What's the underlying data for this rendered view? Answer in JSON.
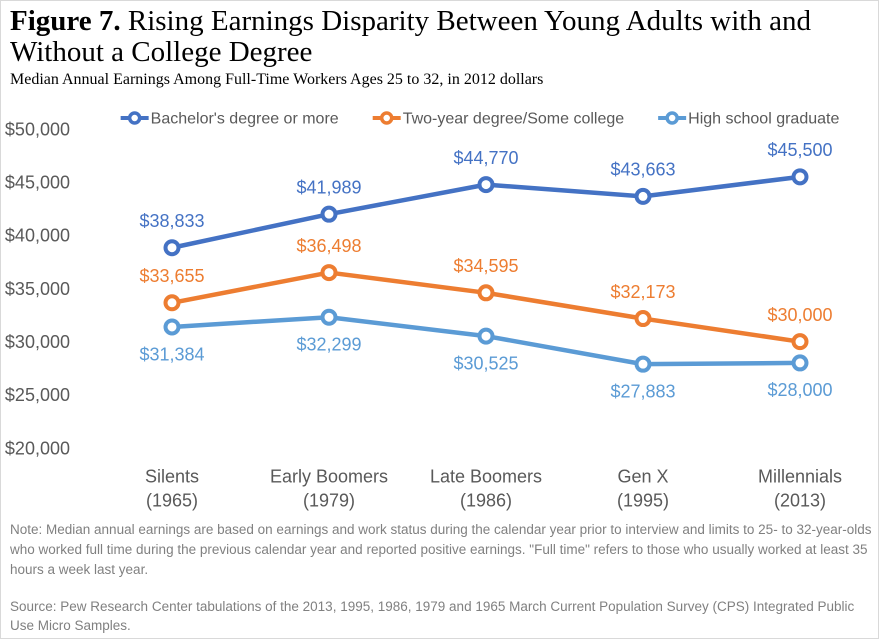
{
  "chart_data": {
    "type": "line",
    "figure_label": "Figure 7.",
    "title": "Rising Earnings Disparity Between Young Adults with and Without a College Degree",
    "subtitle": "Median Annual Earnings Among Full-Time Workers Ages 25 to 32, in 2012 dollars",
    "categories": [
      {
        "label": "Silents",
        "year": "(1965)"
      },
      {
        "label": "Early Boomers",
        "year": "(1979)"
      },
      {
        "label": "Late Boomers",
        "year": "(1986)"
      },
      {
        "label": "Gen X",
        "year": "(1995)"
      },
      {
        "label": "Millennials",
        "year": "(2013)"
      }
    ],
    "series": [
      {
        "name": "Bachelor's degree or more",
        "color": "#4472C4",
        "values": [
          38833,
          41989,
          44770,
          43663,
          45500
        ],
        "labels": [
          "$38,833",
          "$41,989",
          "$44,770",
          "$43,663",
          "$45,500"
        ]
      },
      {
        "name": "Two-year degree/Some college",
        "color": "#ED7D31",
        "values": [
          33655,
          36498,
          34595,
          32173,
          30000
        ],
        "labels": [
          "$33,655",
          "$36,498",
          "$34,595",
          "$32,173",
          "$30,000"
        ]
      },
      {
        "name": "High school graduate",
        "color": "#5B9BD5",
        "values": [
          31384,
          32299,
          30525,
          27883,
          28000
        ],
        "labels": [
          "$31,384",
          "$32,299",
          "$30,525",
          "$27,883",
          "$28,000"
        ]
      }
    ],
    "ylim": [
      20000,
      50000
    ],
    "y_ticks": [
      50000,
      45000,
      40000,
      35000,
      30000,
      25000,
      20000
    ],
    "y_tick_labels": [
      "$50,000",
      "$45,000",
      "$40,000",
      "$35,000",
      "$30,000",
      "$25,000",
      "$20,000"
    ],
    "legend": "top",
    "grid": false,
    "note": "Note: Median annual earnings are based on earnings and work status during the calendar year prior to interview and limits to 25- to 32-year-olds who worked full time during the previous calendar year and reported positive earnings. \"Full time\" refers to those who usually worked at least 35 hours a week last year.",
    "source": "Source: Pew Research Center tabulations of the 2013, 1995, 1986, 1979 and 1965 March Current Population Survey (CPS) Integrated Public Use Micro Samples."
  }
}
